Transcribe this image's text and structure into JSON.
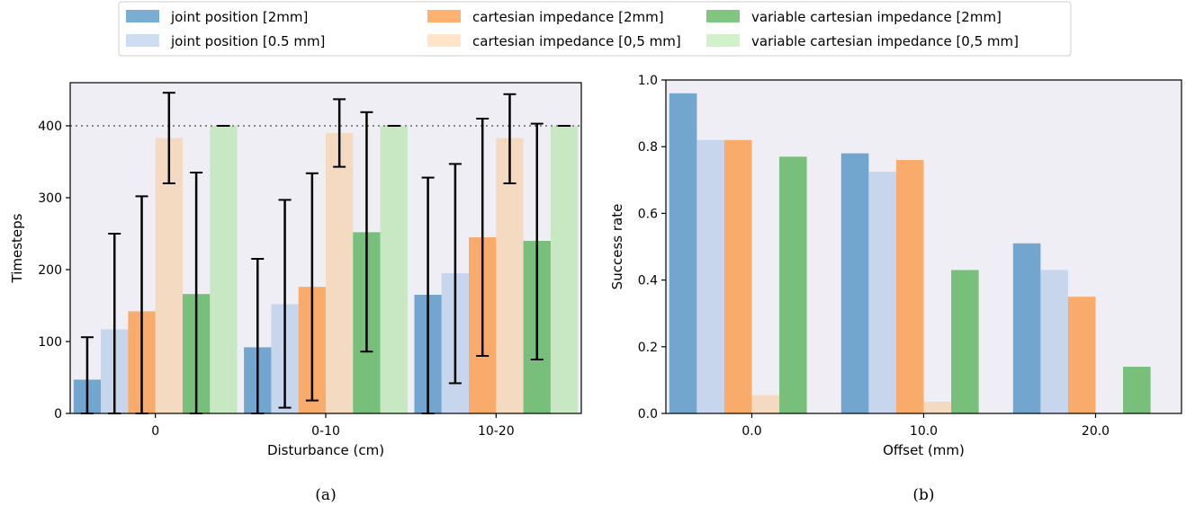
{
  "legend": {
    "entries": [
      {
        "label": "joint position [2mm]",
        "color": "#1f77b4",
        "opacity": 0.6
      },
      {
        "label": "joint position [0.5 mm]",
        "color": "#aec7e8",
        "opacity": 0.6
      },
      {
        "label": "cartesian impedance [2mm]",
        "color": "#ff7f0e",
        "opacity": 0.6
      },
      {
        "label": "cartesian impedance [0,5 mm]",
        "color": "#ffbb78",
        "opacity": 0.4
      },
      {
        "label": "variable cartesian impedance [2mm]",
        "color": "#2ca02c",
        "opacity": 0.6
      },
      {
        "label": "variable cartesian impedance [0,5 mm]",
        "color": "#98df8a",
        "opacity": 0.45
      }
    ]
  },
  "chart_data": [
    {
      "type": "bar",
      "caption": "(a)",
      "xlabel": "Disturbance (cm)",
      "ylabel": "Timesteps",
      "categories": [
        "0",
        "0-10",
        "10-20"
      ],
      "ylim": [
        0,
        460
      ],
      "yticks": [
        0,
        100,
        200,
        300,
        400
      ],
      "reference_line": 400,
      "background": "#eeeef4",
      "series": [
        {
          "name": "joint position [2mm]",
          "values": [
            47,
            92,
            165
          ],
          "err_low": [
            0,
            0,
            0
          ],
          "err_high": [
            106,
            215,
            328
          ]
        },
        {
          "name": "joint position [0.5 mm]",
          "values": [
            117,
            152,
            195
          ],
          "err_low": [
            0,
            8,
            42
          ],
          "err_high": [
            250,
            297,
            347
          ]
        },
        {
          "name": "cartesian impedance [2mm]",
          "values": [
            142,
            176,
            245
          ],
          "err_low": [
            0,
            18,
            80
          ],
          "err_high": [
            302,
            334,
            410
          ]
        },
        {
          "name": "cartesian impedance [0,5 mm]",
          "values": [
            383,
            390,
            383
          ],
          "err_low": [
            320,
            343,
            320
          ],
          "err_high": [
            446,
            437,
            444
          ]
        },
        {
          "name": "variable cartesian impedance [2mm]",
          "values": [
            166,
            252,
            240
          ],
          "err_low": [
            0,
            86,
            75
          ],
          "err_high": [
            335,
            419,
            403
          ]
        },
        {
          "name": "variable cartesian impedance [0,5 mm]",
          "values": [
            400,
            400,
            400
          ],
          "err_low": [
            400,
            400,
            400
          ],
          "err_high": [
            400,
            400,
            400
          ]
        }
      ]
    },
    {
      "type": "bar",
      "caption": "(b)",
      "xlabel": "Offset (mm)",
      "ylabel": "Success rate",
      "categories": [
        "0.0",
        "10.0",
        "20.0"
      ],
      "ylim": [
        0,
        1.0
      ],
      "yticks": [
        0.0,
        0.2,
        0.4,
        0.6,
        0.8,
        1.0
      ],
      "background": "#eeeef4",
      "series": [
        {
          "name": "joint position [2mm]",
          "values": [
            0.96,
            0.78,
            0.51
          ]
        },
        {
          "name": "joint position [0.5 mm]",
          "values": [
            0.82,
            0.725,
            0.43
          ]
        },
        {
          "name": "cartesian impedance [2mm]",
          "values": [
            0.82,
            0.76,
            0.35
          ]
        },
        {
          "name": "cartesian impedance [0,5 mm]",
          "values": [
            0.055,
            0.035,
            0.0
          ]
        },
        {
          "name": "variable cartesian impedance [2mm]",
          "values": [
            0.77,
            0.43,
            0.14
          ]
        },
        {
          "name": "variable cartesian impedance [0,5 mm]",
          "values": [
            0.0,
            0.0,
            0.0
          ]
        }
      ]
    }
  ]
}
